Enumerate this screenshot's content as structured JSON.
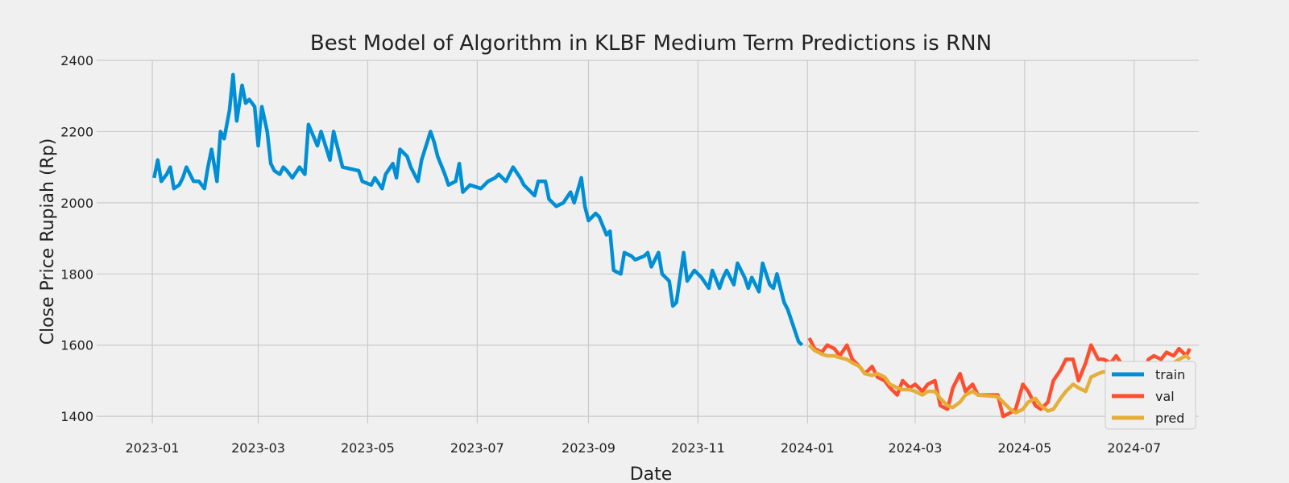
{
  "chart_data": {
    "type": "line",
    "title": "Best Model of Algorithm in KLBF Medium Term Predictions is RNN",
    "xlabel": "Date",
    "ylabel": "Close Price Rupiah (Rp)",
    "xlim": [
      "2022-12-01",
      "2024-08-06"
    ],
    "ylim": [
      1380,
      2400
    ],
    "yticks": [
      1400,
      1600,
      1800,
      2000,
      2200,
      2400
    ],
    "xticks": [
      "2023-01",
      "2023-03",
      "2023-05",
      "2023-07",
      "2023-09",
      "2023-11",
      "2024-01",
      "2024-03",
      "2024-05",
      "2024-07"
    ],
    "grid": true,
    "legend_position": "lower-right",
    "series": [
      {
        "name": "train",
        "color": "#008fd5",
        "x": [
          "2023-01-02",
          "2023-01-04",
          "2023-01-06",
          "2023-01-09",
          "2023-01-11",
          "2023-01-13",
          "2023-01-16",
          "2023-01-18",
          "2023-01-20",
          "2023-01-24",
          "2023-01-27",
          "2023-01-30",
          "2023-02-01",
          "2023-02-03",
          "2023-02-06",
          "2023-02-08",
          "2023-02-10",
          "2023-02-13",
          "2023-02-15",
          "2023-02-17",
          "2023-02-20",
          "2023-02-22",
          "2023-02-24",
          "2023-02-27",
          "2023-03-01",
          "2023-03-03",
          "2023-03-06",
          "2023-03-08",
          "2023-03-10",
          "2023-03-13",
          "2023-03-15",
          "2023-03-17",
          "2023-03-20",
          "2023-03-24",
          "2023-03-27",
          "2023-03-29",
          "2023-04-03",
          "2023-04-05",
          "2023-04-10",
          "2023-04-12",
          "2023-04-17",
          "2023-04-26",
          "2023-04-28",
          "2023-05-03",
          "2023-05-05",
          "2023-05-09",
          "2023-05-11",
          "2023-05-15",
          "2023-05-17",
          "2023-05-19",
          "2023-05-23",
          "2023-05-25",
          "2023-05-29",
          "2023-05-31",
          "2023-06-05",
          "2023-06-07",
          "2023-06-09",
          "2023-06-13",
          "2023-06-15",
          "2023-06-19",
          "2023-06-21",
          "2023-06-23",
          "2023-06-27",
          "2023-07-03",
          "2023-07-05",
          "2023-07-07",
          "2023-07-11",
          "2023-07-13",
          "2023-07-17",
          "2023-07-21",
          "2023-07-25",
          "2023-07-27",
          "2023-07-31",
          "2023-08-02",
          "2023-08-04",
          "2023-08-08",
          "2023-08-10",
          "2023-08-14",
          "2023-08-18",
          "2023-08-22",
          "2023-08-24",
          "2023-08-28",
          "2023-08-30",
          "2023-09-01",
          "2023-09-05",
          "2023-09-07",
          "2023-09-11",
          "2023-09-13",
          "2023-09-15",
          "2023-09-19",
          "2023-09-21",
          "2023-09-25",
          "2023-09-27",
          "2023-10-02",
          "2023-10-04",
          "2023-10-06",
          "2023-10-10",
          "2023-10-12",
          "2023-10-16",
          "2023-10-18",
          "2023-10-20",
          "2023-10-24",
          "2023-10-26",
          "2023-10-30",
          "2023-11-01",
          "2023-11-03",
          "2023-11-07",
          "2023-11-09",
          "2023-11-13",
          "2023-11-15",
          "2023-11-17",
          "2023-11-21",
          "2023-11-23",
          "2023-11-27",
          "2023-11-29",
          "2023-12-01",
          "2023-12-05",
          "2023-12-07",
          "2023-12-11",
          "2023-12-13",
          "2023-12-15",
          "2023-12-19",
          "2023-12-21",
          "2023-12-27",
          "2023-12-29"
        ],
        "y": [
          2070,
          2120,
          2060,
          2080,
          2100,
          2040,
          2050,
          2070,
          2100,
          2060,
          2060,
          2040,
          2100,
          2150,
          2060,
          2200,
          2180,
          2260,
          2360,
          2230,
          2330,
          2280,
          2290,
          2270,
          2160,
          2270,
          2200,
          2110,
          2090,
          2080,
          2100,
          2090,
          2070,
          2100,
          2080,
          2220,
          2160,
          2200,
          2120,
          2200,
          2100,
          2090,
          2060,
          2050,
          2070,
          2040,
          2080,
          2110,
          2070,
          2150,
          2130,
          2100,
          2060,
          2120,
          2200,
          2170,
          2130,
          2080,
          2050,
          2060,
          2110,
          2030,
          2050,
          2040,
          2050,
          2060,
          2070,
          2080,
          2060,
          2100,
          2070,
          2050,
          2030,
          2020,
          2060,
          2060,
          2010,
          1990,
          2000,
          2030,
          2000,
          2070,
          1990,
          1950,
          1970,
          1960,
          1910,
          1920,
          1810,
          1800,
          1860,
          1850,
          1840,
          1850,
          1860,
          1820,
          1860,
          1800,
          1780,
          1710,
          1720,
          1860,
          1780,
          1810,
          1800,
          1790,
          1760,
          1810,
          1760,
          1790,
          1810,
          1770,
          1830,
          1790,
          1760,
          1790,
          1750,
          1830,
          1770,
          1760,
          1800,
          1720,
          1700,
          1610,
          1600
        ]
      },
      {
        "name": "val",
        "color": "#fc4f30",
        "x": [
          "2024-01-02",
          "2024-01-05",
          "2024-01-09",
          "2024-01-12",
          "2024-01-16",
          "2024-01-19",
          "2024-01-23",
          "2024-01-26",
          "2024-01-30",
          "2024-02-02",
          "2024-02-06",
          "2024-02-09",
          "2024-02-13",
          "2024-02-16",
          "2024-02-20",
          "2024-02-23",
          "2024-02-27",
          "2024-03-01",
          "2024-03-05",
          "2024-03-08",
          "2024-03-12",
          "2024-03-15",
          "2024-03-19",
          "2024-03-22",
          "2024-03-26",
          "2024-03-29",
          "2024-04-02",
          "2024-04-05",
          "2024-04-16",
          "2024-04-19",
          "2024-04-23",
          "2024-04-26",
          "2024-04-30",
          "2024-05-03",
          "2024-05-07",
          "2024-05-10",
          "2024-05-14",
          "2024-05-17",
          "2024-05-21",
          "2024-05-24",
          "2024-05-28",
          "2024-05-31",
          "2024-06-04",
          "2024-06-07",
          "2024-06-11",
          "2024-06-14",
          "2024-06-18",
          "2024-06-21",
          "2024-06-25",
          "2024-06-28",
          "2024-07-02",
          "2024-07-05",
          "2024-07-09",
          "2024-07-12",
          "2024-07-16",
          "2024-07-19",
          "2024-07-23",
          "2024-07-26",
          "2024-07-30",
          "2024-08-01"
        ],
        "y": [
          1620,
          1590,
          1580,
          1600,
          1590,
          1570,
          1600,
          1560,
          1540,
          1520,
          1540,
          1510,
          1500,
          1480,
          1460,
          1500,
          1480,
          1490,
          1470,
          1490,
          1500,
          1430,
          1420,
          1480,
          1520,
          1470,
          1490,
          1460,
          1460,
          1400,
          1410,
          1420,
          1490,
          1470,
          1430,
          1420,
          1440,
          1500,
          1530,
          1560,
          1560,
          1500,
          1550,
          1600,
          1560,
          1560,
          1550,
          1570,
          1540,
          1530,
          1450,
          1490,
          1560,
          1570,
          1560,
          1580,
          1570,
          1590,
          1570,
          1590
        ]
      },
      {
        "name": "pred",
        "color": "#e5ae38",
        "x": [
          "2024-01-02",
          "2024-01-05",
          "2024-01-09",
          "2024-01-12",
          "2024-01-16",
          "2024-01-19",
          "2024-01-23",
          "2024-01-26",
          "2024-01-30",
          "2024-02-02",
          "2024-02-06",
          "2024-02-09",
          "2024-02-13",
          "2024-02-16",
          "2024-02-20",
          "2024-02-23",
          "2024-02-27",
          "2024-03-01",
          "2024-03-05",
          "2024-03-08",
          "2024-03-12",
          "2024-03-15",
          "2024-03-19",
          "2024-03-22",
          "2024-03-26",
          "2024-03-29",
          "2024-04-02",
          "2024-04-05",
          "2024-04-16",
          "2024-04-19",
          "2024-04-23",
          "2024-04-26",
          "2024-04-30",
          "2024-05-03",
          "2024-05-07",
          "2024-05-10",
          "2024-05-14",
          "2024-05-17",
          "2024-05-21",
          "2024-05-24",
          "2024-05-28",
          "2024-05-31",
          "2024-06-04",
          "2024-06-07",
          "2024-06-11",
          "2024-06-14",
          "2024-06-18",
          "2024-06-21",
          "2024-06-25",
          "2024-06-28",
          "2024-07-02",
          "2024-07-05",
          "2024-07-09",
          "2024-07-12",
          "2024-07-16",
          "2024-07-19",
          "2024-07-23",
          "2024-07-26",
          "2024-07-30",
          "2024-08-01"
        ],
        "y": [
          1600,
          1585,
          1575,
          1570,
          1570,
          1565,
          1560,
          1550,
          1540,
          1520,
          1515,
          1520,
          1510,
          1490,
          1480,
          1475,
          1475,
          1470,
          1460,
          1470,
          1470,
          1450,
          1430,
          1425,
          1440,
          1460,
          1470,
          1460,
          1455,
          1440,
          1420,
          1410,
          1420,
          1440,
          1450,
          1430,
          1415,
          1420,
          1450,
          1470,
          1490,
          1480,
          1470,
          1510,
          1520,
          1525,
          1520,
          1525,
          1520,
          1515,
          1480,
          1460,
          1480,
          1510,
          1530,
          1540,
          1550,
          1560,
          1570,
          1560
        ]
      }
    ]
  }
}
